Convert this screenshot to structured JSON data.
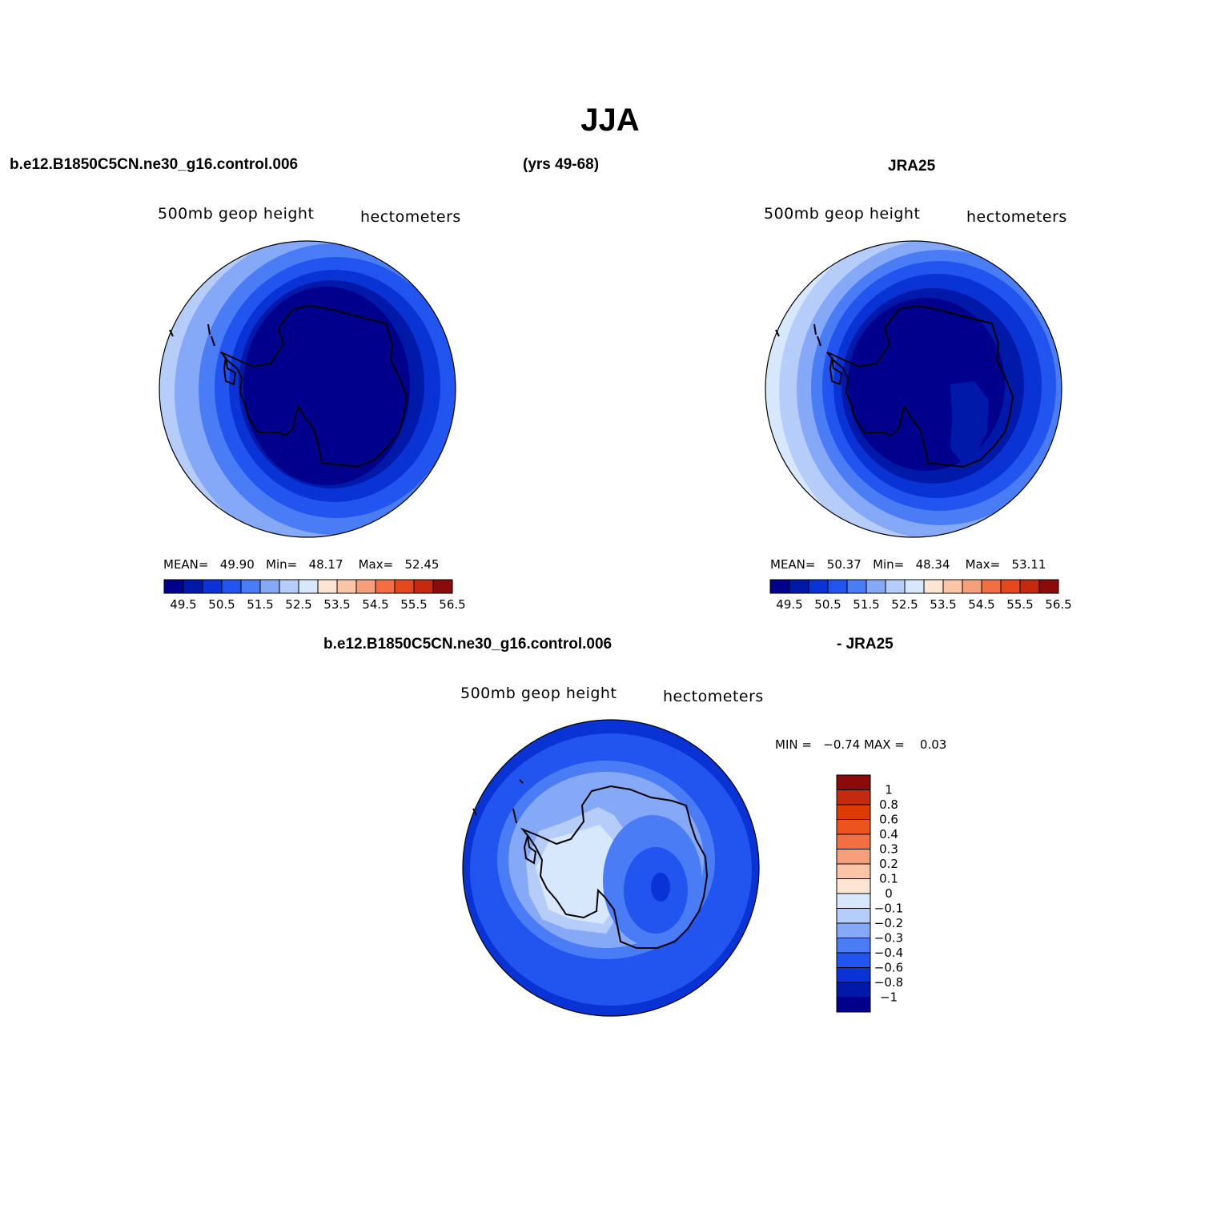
{
  "figure": {
    "title": "JJA",
    "top_left_case": "b.e12.B1850C5CN.ne30_g16.control.006",
    "years": "(yrs 49-68)",
    "top_right_case": "JRA25",
    "diff_case": "b.e12.B1850C5CN.ne30_g16.control.006",
    "diff_ref": "- JRA25"
  },
  "colors": {
    "abs_palette": [
      "#00008c",
      "#0019a8",
      "#0a33d6",
      "#2255f0",
      "#4a7df5",
      "#85a8f7",
      "#b7cdf9",
      "#d8e8fc",
      "#fde5d4",
      "#fbc5a8",
      "#f5a07b",
      "#f26f43",
      "#e4481c",
      "#c52a0e",
      "#8b0b0b"
    ],
    "diff_palette": [
      "#00008c",
      "#0019a8",
      "#0a33d6",
      "#2255f0",
      "#4a7df5",
      "#85a8f7",
      "#b7cdf9",
      "#d8e8fc",
      "#fde5d4",
      "#fbc5a8",
      "#f5a07b",
      "#f26f43",
      "#ec531f",
      "#de3a06",
      "#c52a0e",
      "#8b0b0b"
    ]
  },
  "chart_data": [
    {
      "type": "heatmap",
      "panel": "model",
      "left_label": "500mb  geop  height",
      "right_label": "hectometers",
      "stats": {
        "mean_label": "MEAN=",
        "mean": "49.90",
        "min_label": "Min=",
        "min": "48.17",
        "max_label": "Max=",
        "max": "52.45"
      },
      "levels": [
        49.5,
        50,
        50.5,
        51,
        51.5,
        52,
        52.5,
        53,
        53.5,
        54,
        54.5,
        55,
        55.5,
        56
      ],
      "tick_labels": [
        "49.5",
        "50.5",
        "51.5",
        "52.5",
        "53.5",
        "54.5",
        "55.5",
        "56.5"
      ],
      "projection": "south-polar-stereographic"
    },
    {
      "type": "heatmap",
      "panel": "reference",
      "left_label": "500mb  geop  height",
      "right_label": "hectometers",
      "stats": {
        "mean_label": "MEAN=",
        "mean": "50.37",
        "min_label": "Min=",
        "min": "48.34",
        "max_label": "Max=",
        "max": "53.11"
      },
      "levels": [
        49.5,
        50,
        50.5,
        51,
        51.5,
        52,
        52.5,
        53,
        53.5,
        54,
        54.5,
        55,
        55.5,
        56
      ],
      "tick_labels": [
        "49.5",
        "50.5",
        "51.5",
        "52.5",
        "53.5",
        "54.5",
        "55.5",
        "56.5"
      ],
      "projection": "south-polar-stereographic"
    },
    {
      "type": "heatmap",
      "panel": "difference",
      "left_label": "500mb  geop  height",
      "right_label": "hectometers",
      "stats_text": {
        "min_label": "MIN =",
        "min": "−0.74",
        "max_label": "MAX =",
        "max": "0.03"
      },
      "levels": [
        -1,
        -0.8,
        -0.6,
        -0.4,
        -0.3,
        -0.2,
        -0.1,
        0,
        0.1,
        0.2,
        0.3,
        0.4,
        0.6,
        0.8,
        1
      ],
      "tick_labels": [
        "1",
        "0.8",
        "0.6",
        "0.4",
        "0.3",
        "0.2",
        "0.1",
        "0",
        "−0.1",
        "−0.2",
        "−0.3",
        "−0.4",
        "−0.6",
        "−0.8",
        "−1"
      ],
      "projection": "south-polar-stereographic"
    }
  ]
}
